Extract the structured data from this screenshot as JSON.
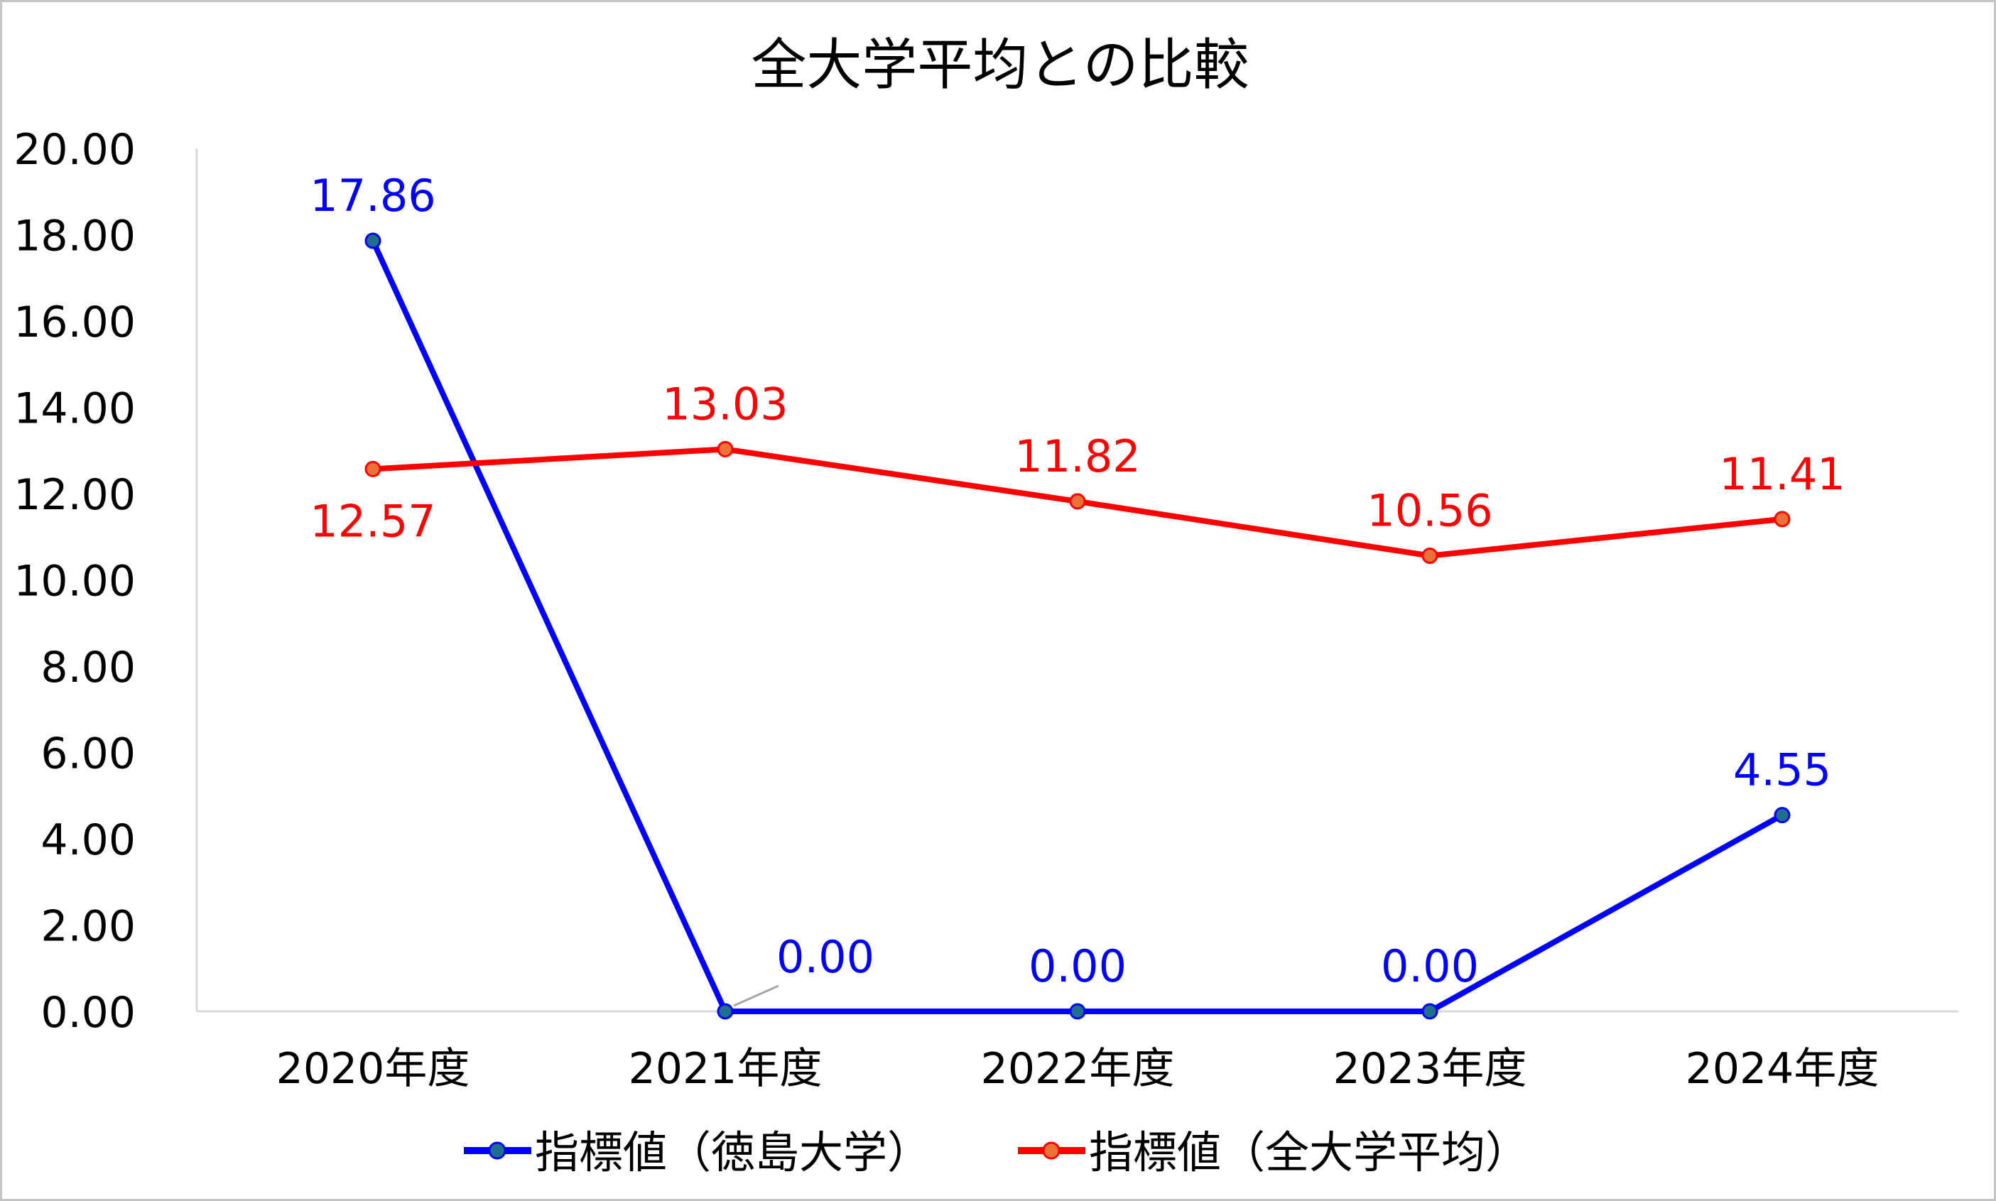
{
  "chart_data": {
    "type": "line",
    "title": "全大学平均との比較",
    "categories": [
      "2020年度",
      "2021年度",
      "2022年度",
      "2023年度",
      "2024年度"
    ],
    "ylim": [
      0,
      20
    ],
    "yticks": [
      "0.00",
      "2.00",
      "4.00",
      "6.00",
      "8.00",
      "10.00",
      "12.00",
      "14.00",
      "16.00",
      "18.00",
      "20.00"
    ],
    "grid": false,
    "legend_position": "bottom",
    "series": [
      {
        "name": "指標値（徳島大学）",
        "values": [
          17.86,
          0.0,
          0.0,
          0.0,
          4.55
        ],
        "labels": [
          "17.86",
          "0.00",
          "0.00",
          "0.00",
          "4.55"
        ],
        "color": "#0000ff",
        "marker_fill": "#1f6e8c"
      },
      {
        "name": "指標値（全大学平均）",
        "values": [
          12.57,
          13.03,
          11.82,
          10.56,
          11.41
        ],
        "labels": [
          "12.57",
          "13.03",
          "11.82",
          "10.56",
          "11.41"
        ],
        "color": "#ff0000",
        "marker_fill": "#ea7138"
      }
    ]
  }
}
